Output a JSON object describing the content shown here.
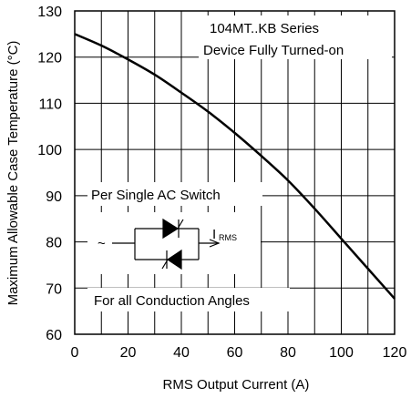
{
  "chart_data": {
    "type": "line",
    "title": "",
    "xlabel": "RMS Output Current (A)",
    "ylabel": "Maximum Allowable Case Temperature (°C)",
    "xlim": [
      0,
      120
    ],
    "ylim": [
      60,
      130
    ],
    "xticks": [
      "0",
      "20",
      "40",
      "60",
      "80",
      "100",
      "120"
    ],
    "yticks": [
      "60",
      "70",
      "80",
      "90",
      "100",
      "110",
      "120",
      "130"
    ],
    "grid": true,
    "series": [
      {
        "x": [
          0,
          10,
          20,
          30,
          40,
          50,
          60,
          70,
          80,
          90,
          100,
          110,
          120
        ],
        "y": [
          125,
          122.5,
          119.5,
          116.2,
          112.3,
          108.2,
          103.6,
          98.6,
          93.3,
          87.2,
          80.7,
          74.2,
          67.7
        ]
      }
    ],
    "annotations": {
      "series_label_line1": "104MT..KB Series",
      "series_label_line2": "Device Fully Turned-on",
      "note_top": "Per Single AC Switch",
      "note_bottom": "For all Conduction Angles",
      "current_symbol": "I",
      "current_subscript": "RMS",
      "source_symbol": "~"
    },
    "colors": {
      "line": "#000000",
      "grid": "#000000",
      "background": "#ffffff"
    }
  }
}
